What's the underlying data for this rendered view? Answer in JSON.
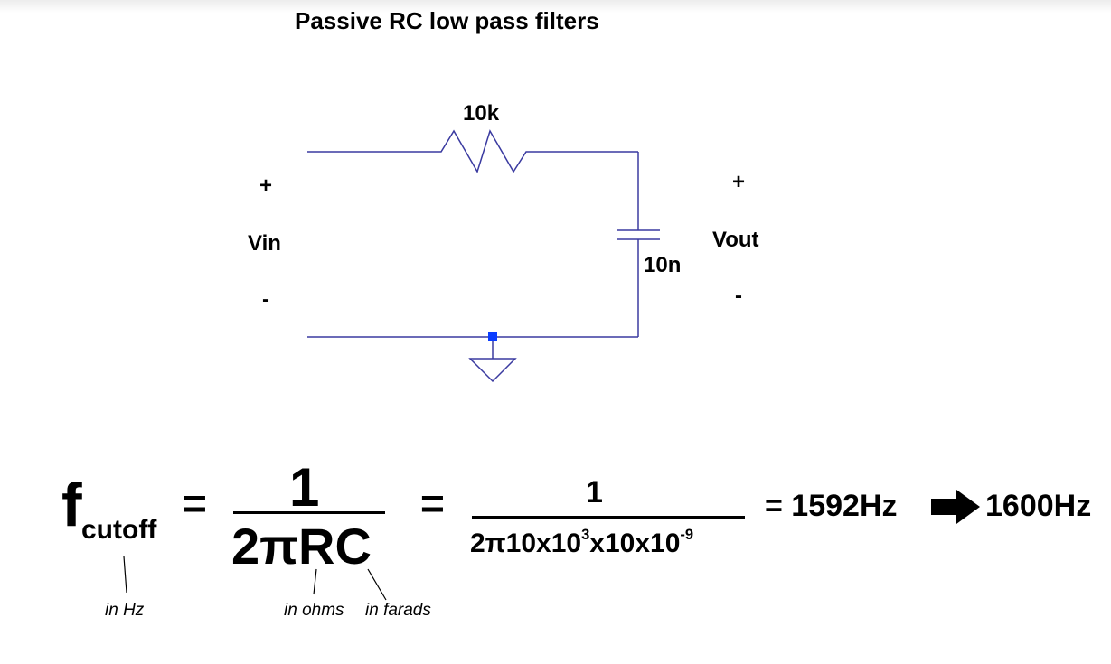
{
  "title": "Passive RC low pass filters",
  "circuit": {
    "resistor_label": "10k",
    "capacitor_label": "10n",
    "input": {
      "plus": "+",
      "name": "Vin",
      "minus": "-"
    },
    "output": {
      "plus": "+",
      "name": "Vout",
      "minus": "-"
    },
    "wire_color": "#3a3aa0",
    "ground_node_color": "#0a3cff"
  },
  "formula": {
    "f": "f",
    "cutoff_sub": "cutoff",
    "equals": "=",
    "numerator_1": "1",
    "denominator_1": "2πRC",
    "numerator_2": "1",
    "denom2_a": "2π10x10",
    "denom2_exp1": "3",
    "denom2_b": "x10x10",
    "denom2_exp2": "-9",
    "result": "= 1592Hz",
    "rounded": "1600Hz"
  },
  "notes": {
    "hz": "in Hz",
    "ohms": "in ohms",
    "farads": "in farads"
  }
}
